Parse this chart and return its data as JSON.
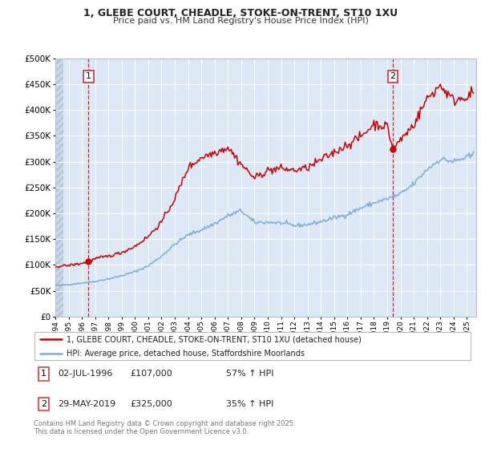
{
  "title_line1": "1, GLEBE COURT, CHEADLE, STOKE-ON-TRENT, ST10 1XU",
  "title_line2": "Price paid vs. HM Land Registry's House Price Index (HPI)",
  "ylim": [
    0,
    500000
  ],
  "yticks": [
    0,
    50000,
    100000,
    150000,
    200000,
    250000,
    300000,
    350000,
    400000,
    450000,
    500000
  ],
  "xmin": 1994.0,
  "xmax": 2025.7,
  "xticks": [
    1994,
    1995,
    1996,
    1997,
    1998,
    1999,
    2000,
    2001,
    2002,
    2003,
    2004,
    2005,
    2006,
    2007,
    2008,
    2009,
    2010,
    2011,
    2012,
    2013,
    2014,
    2015,
    2016,
    2017,
    2018,
    2019,
    2020,
    2021,
    2022,
    2023,
    2024,
    2025
  ],
  "red_color": "#cc0000",
  "blue_color": "#7aadd4",
  "point1_x": 1996.5,
  "point1_y": 107000,
  "point2_x": 2019.42,
  "point2_y": 325000,
  "legend_red": "1, GLEBE COURT, CHEADLE, STOKE-ON-TRENT, ST10 1XU (detached house)",
  "legend_blue": "HPI: Average price, detached house, Staffordshire Moorlands",
  "table_row1": [
    "1",
    "02-JUL-1996",
    "£107,000",
    "57% ↑ HPI"
  ],
  "table_row2": [
    "2",
    "29-MAY-2019",
    "£325,000",
    "35% ↑ HPI"
  ],
  "footer": "Contains HM Land Registry data © Crown copyright and database right 2025.\nThis data is licensed under the Open Government Licence v3.0.",
  "bg_color": "#ffffff",
  "plot_bg_color": "#dce8f5",
  "grid_color": "#ffffff",
  "hatch_bg": "#c8d8e8"
}
